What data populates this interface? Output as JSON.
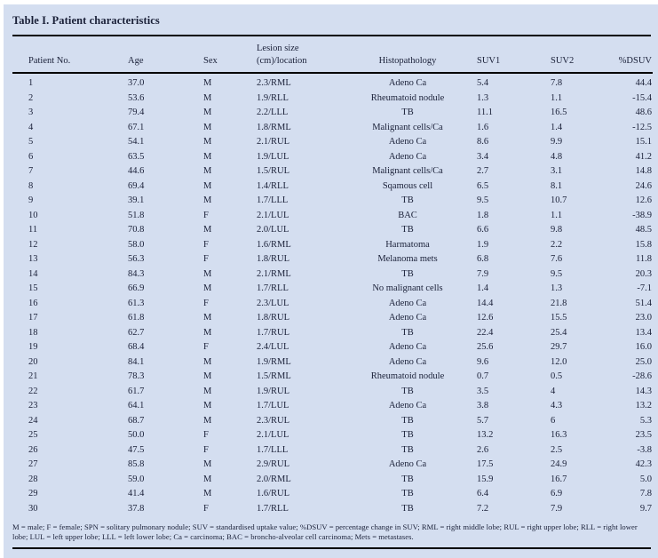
{
  "title": "Table I. Patient characteristics",
  "colors": {
    "panel_background": "#d4def0",
    "text": "#1a2038",
    "rule": "#000000"
  },
  "table": {
    "columns": [
      {
        "label": "Patient No."
      },
      {
        "label": "Age"
      },
      {
        "label": "Sex"
      },
      {
        "label": "Lesion size",
        "label2": "(cm)/location"
      },
      {
        "label": "Histopathology"
      },
      {
        "label": "SUV1"
      },
      {
        "label": "SUV2"
      },
      {
        "label": "%DSUV"
      }
    ],
    "rows": [
      [
        "1",
        "37.0",
        "M",
        "2.3/RML",
        "Adeno Ca",
        "5.4",
        "7.8",
        "44.4"
      ],
      [
        "2",
        "53.6",
        "M",
        "1.9/RLL",
        "Rheumatoid nodule",
        "1.3",
        "1.1",
        "-15.4"
      ],
      [
        "3",
        "79.4",
        "M",
        "2.2/LLL",
        "TB",
        "11.1",
        "16.5",
        "48.6"
      ],
      [
        "4",
        "67.1",
        "M",
        "1.8/RML",
        "Malignant cells/Ca",
        "1.6",
        "1.4",
        "-12.5"
      ],
      [
        "5",
        "54.1",
        "M",
        "2.1/RUL",
        "Adeno Ca",
        "8.6",
        "9.9",
        "15.1"
      ],
      [
        "6",
        "63.5",
        "M",
        "1.9/LUL",
        "Adeno Ca",
        "3.4",
        "4.8",
        "41.2"
      ],
      [
        "7",
        "44.6",
        "M",
        "1.5/RUL",
        "Malignant cells/Ca",
        "2.7",
        "3.1",
        "14.8"
      ],
      [
        "8",
        "69.4",
        "M",
        "1.4/RLL",
        "Sqamous cell",
        "6.5",
        "8.1",
        "24.6"
      ],
      [
        "9",
        "39.1",
        "M",
        "1.7/LLL",
        "TB",
        "9.5",
        "10.7",
        "12.6"
      ],
      [
        "10",
        "51.8",
        "F",
        "2.1/LUL",
        "BAC",
        "1.8",
        "1.1",
        "-38.9"
      ],
      [
        "11",
        "70.8",
        "M",
        "2.0/LUL",
        "TB",
        "6.6",
        "9.8",
        "48.5"
      ],
      [
        "12",
        "58.0",
        "F",
        "1.6/RML",
        "Harmatoma",
        "1.9",
        "2.2",
        "15.8"
      ],
      [
        "13",
        "56.3",
        "F",
        "1.8/RUL",
        "Melanoma mets",
        "6.8",
        "7.6",
        "11.8"
      ],
      [
        "14",
        "84.3",
        "M",
        "2.1/RML",
        "TB",
        "7.9",
        "9.5",
        "20.3"
      ],
      [
        "15",
        "66.9",
        "M",
        "1.7/RLL",
        "No malignant cells",
        "1.4",
        "1.3",
        "-7.1"
      ],
      [
        "16",
        "61.3",
        "F",
        "2.3/LUL",
        "Adeno Ca",
        "14.4",
        "21.8",
        "51.4"
      ],
      [
        "17",
        "61.8",
        "M",
        "1.8/RUL",
        "Adeno Ca",
        "12.6",
        "15.5",
        "23.0"
      ],
      [
        "18",
        "62.7",
        "M",
        "1.7/RUL",
        "TB",
        "22.4",
        "25.4",
        "13.4"
      ],
      [
        "19",
        "68.4",
        "F",
        "2.4/LUL",
        "Adeno Ca",
        "25.6",
        "29.7",
        "16.0"
      ],
      [
        "20",
        "84.1",
        "M",
        "1.9/RML",
        "Adeno Ca",
        "9.6",
        "12.0",
        "25.0"
      ],
      [
        "21",
        "78.3",
        "M",
        "1.5/RML",
        "Rheumatoid nodule",
        "0.7",
        "0.5",
        "-28.6"
      ],
      [
        "22",
        "61.7",
        "M",
        "1.9/RUL",
        "TB",
        "3.5",
        "4",
        "14.3"
      ],
      [
        "23",
        "64.1",
        "M",
        "1.7/LUL",
        "Adeno Ca",
        "3.8",
        "4.3",
        "13.2"
      ],
      [
        "24",
        "68.7",
        "M",
        "2.3/RUL",
        "TB",
        "5.7",
        "6",
        "5.3"
      ],
      [
        "25",
        "50.0",
        "F",
        "2.1/LUL",
        "TB",
        "13.2",
        "16.3",
        "23.5"
      ],
      [
        "26",
        "47.5",
        "F",
        "1.7/LLL",
        "TB",
        "2.6",
        "2.5",
        "-3.8"
      ],
      [
        "27",
        "85.8",
        "M",
        "2.9/RUL",
        "Adeno Ca",
        "17.5",
        "24.9",
        "42.3"
      ],
      [
        "28",
        "59.0",
        "M",
        "2.0/RML",
        "TB",
        "15.9",
        "16.7",
        "5.0"
      ],
      [
        "29",
        "41.4",
        "M",
        "1.6/RUL",
        "TB",
        "6.4",
        "6.9",
        "7.8"
      ],
      [
        "30",
        "37.8",
        "F",
        "1.7/RLL",
        "TB",
        "7.2",
        "7.9",
        "9.7"
      ]
    ]
  },
  "footnote": "M = male; F = female; SPN = solitary pulmonary nodule; SUV = standardised uptake value; %DSUV = percentage change in SUV; RML = right middle lobe; RUL = right upper lobe; RLL = right lower lobe; LUL = left upper lobe; LLL = left lower lobe; Ca = carcinoma; BAC = broncho-alveolar cell carcinoma; Mets = metastases."
}
